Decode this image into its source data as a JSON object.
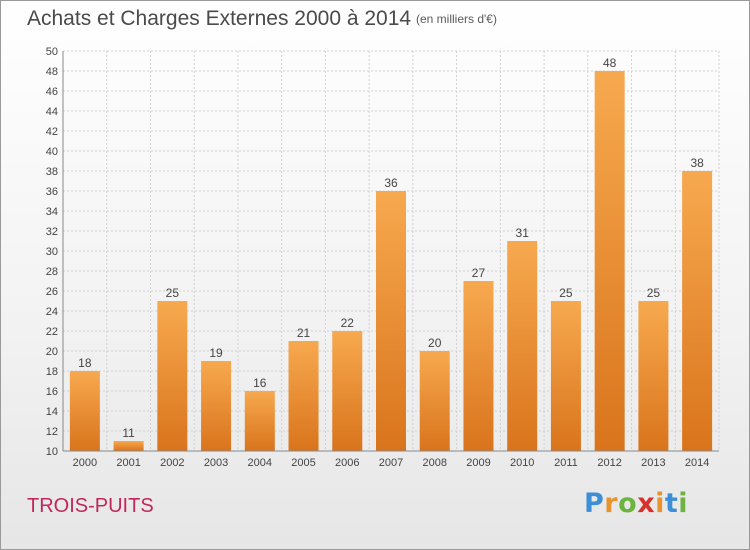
{
  "header": {
    "title": "Achats et Charges Externes 2000 à 2014",
    "subtitle": "(en milliers d'€)"
  },
  "footer": {
    "commune": "TROIS-PUITS",
    "logo": {
      "letters": [
        "P",
        "r",
        "o",
        "x",
        "i",
        "t",
        "i"
      ],
      "colors": [
        "#3c8fd6",
        "#e8932e",
        "#6cb33f",
        "#d9322b",
        "#e8932e",
        "#3c8fd6",
        "#6cb33f"
      ]
    }
  },
  "colors": {
    "bar_light": "#f7a94f",
    "bar_dark": "#d9741c",
    "grid": "#d0d0d0",
    "axis_text": "#444444"
  },
  "chart_data": {
    "type": "bar",
    "categories": [
      "2000",
      "2001",
      "2002",
      "2003",
      "2004",
      "2005",
      "2006",
      "2007",
      "2008",
      "2009",
      "2010",
      "2011",
      "2012",
      "2013",
      "2014"
    ],
    "values": [
      18,
      11,
      25,
      19,
      16,
      21,
      22,
      36,
      20,
      27,
      31,
      25,
      48,
      25,
      38
    ],
    "data_labels": [
      "18",
      "11",
      "25",
      "19",
      "16",
      "21",
      "22",
      "36",
      "20",
      "27",
      "31",
      "25",
      "48",
      "25",
      "38"
    ],
    "title": "Achats et Charges Externes 2000 à 2014",
    "xlabel": "",
    "ylabel": "",
    "ylim": [
      10,
      50
    ],
    "yticks": [
      10,
      12,
      14,
      16,
      18,
      20,
      22,
      24,
      26,
      28,
      30,
      32,
      34,
      36,
      38,
      40,
      42,
      44,
      46,
      48,
      50
    ],
    "grid": true
  }
}
